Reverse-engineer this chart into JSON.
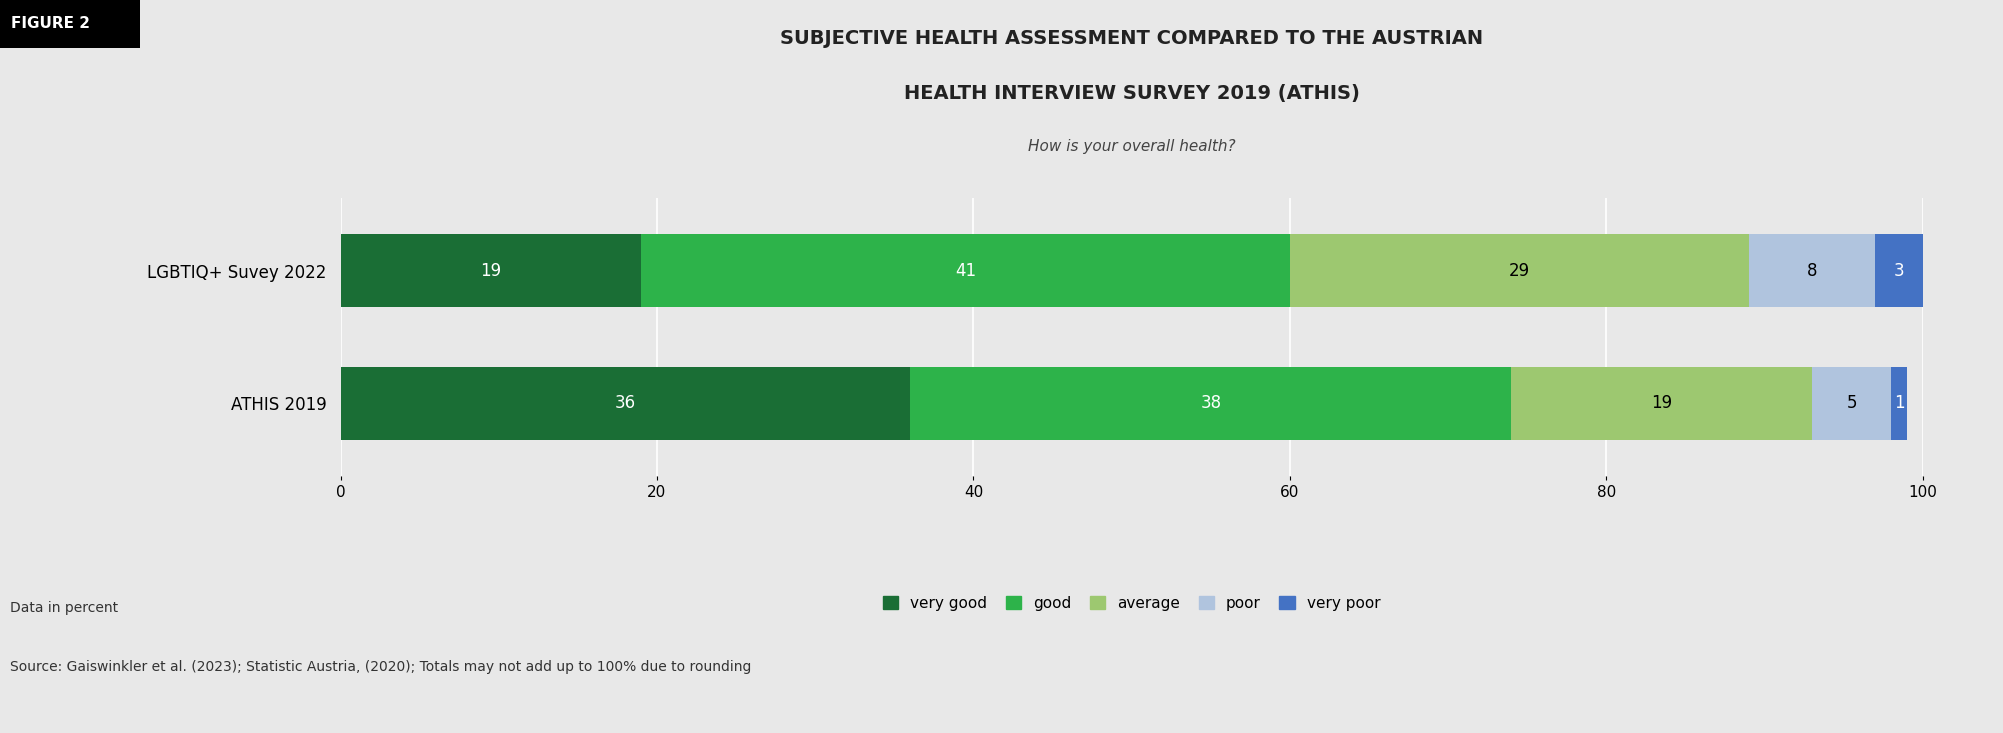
{
  "title_line1": "SUBJECTIVE HEALTH ASSESSMENT COMPARED TO THE AUSTRIAN",
  "title_line2": "HEALTH INTERVIEW SURVEY 2019 (ATHIS)",
  "subtitle": "How is your overall health?",
  "categories": [
    "LGBTIQ+ Suvey 2022",
    "ATHIS 2019"
  ],
  "segments": [
    "very good",
    "good",
    "average",
    "poor",
    "very poor"
  ],
  "colors": [
    "#1a6e35",
    "#2db34a",
    "#9dc870",
    "#b0c4de",
    "#4472c4"
  ],
  "values": [
    [
      19,
      41,
      29,
      8,
      3
    ],
    [
      36,
      38,
      19,
      5,
      1
    ]
  ],
  "label_colors": [
    [
      "#ffffff",
      "#ffffff",
      "#000000",
      "#000000",
      "#ffffff"
    ],
    [
      "#ffffff",
      "#ffffff",
      "#000000",
      "#000000",
      "#ffffff"
    ]
  ],
  "xlim": [
    0,
    100
  ],
  "xticks": [
    0,
    20,
    40,
    60,
    80,
    100
  ],
  "figure_label": "FIGURE 2",
  "note_line1": "Data in percent",
  "note_line2": "Source: Gaiswinkler et al. (2023); Statistic Austria, (2020); Totals may not add up to 100% due to rounding",
  "background_color": "#e8e8e8",
  "bar_height": 0.55,
  "title_fontsize": 14,
  "subtitle_fontsize": 11,
  "tick_fontsize": 11,
  "label_fontsize": 12,
  "ylabel_fontsize": 12,
  "legend_fontsize": 11,
  "note_fontsize": 10,
  "figure_label_fontsize": 11
}
